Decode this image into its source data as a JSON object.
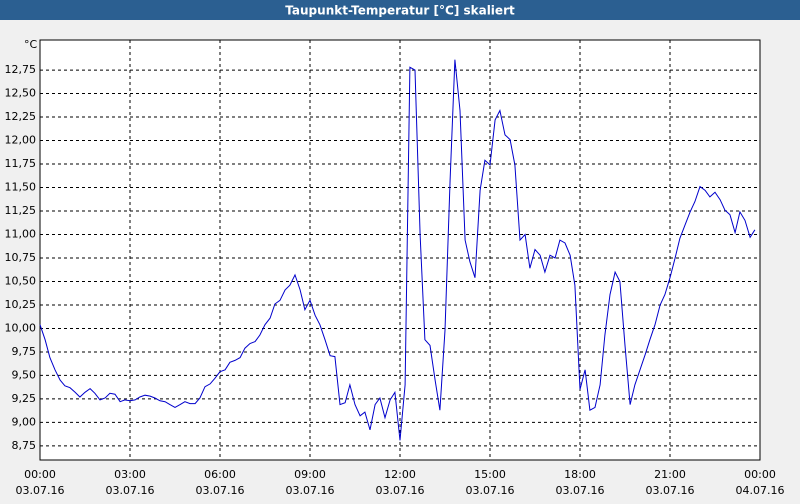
{
  "chart_data": {
    "type": "line",
    "title": "Taupunkt-Temperatur [°C] skaliert",
    "y_unit": "°C",
    "xlim": [
      0,
      24
    ],
    "ylim": [
      8.6,
      13.07
    ],
    "grid": true,
    "xticks": [
      {
        "value": 0,
        "label": "00:00",
        "date": "03.07.16"
      },
      {
        "value": 3,
        "label": "03:00",
        "date": "03.07.16"
      },
      {
        "value": 6,
        "label": "06:00",
        "date": "03.07.16"
      },
      {
        "value": 9,
        "label": "09:00",
        "date": "03.07.16"
      },
      {
        "value": 12,
        "label": "12:00",
        "date": "03.07.16"
      },
      {
        "value": 15,
        "label": "15:00",
        "date": "03.07.16"
      },
      {
        "value": 18,
        "label": "18:00",
        "date": "03.07.16"
      },
      {
        "value": 21,
        "label": "21:00",
        "date": "03.07.16"
      },
      {
        "value": 24,
        "label": "00:00",
        "date": "04.07.16"
      }
    ],
    "yticks": [
      {
        "value": 8.75,
        "label": "8,75"
      },
      {
        "value": 9,
        "label": "9,00"
      },
      {
        "value": 9.25,
        "label": "9,25"
      },
      {
        "value": 9.5,
        "label": "9,50"
      },
      {
        "value": 9.75,
        "label": "9,75"
      },
      {
        "value": 10,
        "label": "10,00"
      },
      {
        "value": 10.25,
        "label": "10,25"
      },
      {
        "value": 10.5,
        "label": "10,50"
      },
      {
        "value": 10.75,
        "label": "10,75"
      },
      {
        "value": 11,
        "label": "11,00"
      },
      {
        "value": 11.25,
        "label": "11,25"
      },
      {
        "value": 11.5,
        "label": "11,50"
      },
      {
        "value": 11.75,
        "label": "11,75"
      },
      {
        "value": 12,
        "label": "12,00"
      },
      {
        "value": 12.25,
        "label": "12,25"
      },
      {
        "value": 12.5,
        "label": "12,50"
      },
      {
        "value": 12.75,
        "label": "12,75"
      }
    ],
    "x": [
      0,
      0.17,
      0.33,
      0.5,
      0.67,
      0.83,
      1,
      1.17,
      1.33,
      1.5,
      1.67,
      1.83,
      2,
      2.17,
      2.33,
      2.5,
      2.67,
      2.83,
      3,
      3.17,
      3.33,
      3.5,
      3.67,
      3.83,
      4,
      4.17,
      4.33,
      4.5,
      4.67,
      4.83,
      5,
      5.17,
      5.33,
      5.5,
      5.67,
      5.83,
      6,
      6.17,
      6.33,
      6.5,
      6.67,
      6.83,
      7,
      7.17,
      7.33,
      7.5,
      7.67,
      7.83,
      8,
      8.17,
      8.33,
      8.5,
      8.67,
      8.83,
      9,
      9.17,
      9.33,
      9.5,
      9.67,
      9.83,
      10,
      10.17,
      10.33,
      10.5,
      10.67,
      10.83,
      11,
      11.17,
      11.33,
      11.5,
      11.67,
      11.83,
      12,
      12.17,
      12.33,
      12.5,
      12.67,
      12.83,
      13,
      13.17,
      13.33,
      13.5,
      13.67,
      13.83,
      14,
      14.17,
      14.33,
      14.5,
      14.67,
      14.83,
      15,
      15.17,
      15.33,
      15.5,
      15.67,
      15.83,
      16,
      16.17,
      16.33,
      16.5,
      16.67,
      16.83,
      17,
      17.17,
      17.33,
      17.5,
      17.67,
      17.83,
      18,
      18.17,
      18.33,
      18.5,
      18.67,
      18.83,
      19,
      19.17,
      19.33,
      19.5,
      19.67,
      19.83,
      20,
      20.17,
      20.33,
      20.5,
      20.67,
      20.83,
      21,
      21.17,
      21.33,
      21.5,
      21.67,
      21.83,
      22,
      22.17,
      22.33,
      22.5,
      22.67,
      22.83,
      23,
      23.17,
      23.33,
      23.5,
      23.67,
      23.83
    ],
    "series": [
      {
        "name": "Taupunkt-Temperatur",
        "color": "#0000cc",
        "values": [
          10.04,
          9.88,
          9.69,
          9.56,
          9.45,
          9.39,
          9.37,
          9.32,
          9.27,
          9.32,
          9.36,
          9.31,
          9.24,
          9.26,
          9.31,
          9.3,
          9.22,
          9.24,
          9.23,
          9.24,
          9.27,
          9.29,
          9.28,
          9.26,
          9.23,
          9.22,
          9.19,
          9.16,
          9.19,
          9.22,
          9.2,
          9.2,
          9.26,
          9.38,
          9.41,
          9.47,
          9.54,
          9.56,
          9.64,
          9.66,
          9.69,
          9.79,
          9.84,
          9.86,
          9.93,
          10.04,
          10.11,
          10.26,
          10.3,
          10.41,
          10.46,
          10.57,
          10.41,
          10.2,
          10.3,
          10.14,
          10.04,
          9.88,
          9.71,
          9.7,
          9.19,
          9.21,
          9.4,
          9.19,
          9.07,
          9.11,
          8.92,
          9.19,
          9.26,
          9.05,
          9.24,
          9.32,
          8.81,
          9.4,
          12.78,
          12.75,
          11.0,
          9.88,
          9.82,
          9.45,
          9.13,
          9.98,
          11.58,
          12.86,
          12.32,
          10.94,
          10.71,
          10.54,
          11.47,
          11.79,
          11.74,
          12.22,
          12.32,
          12.06,
          12.01,
          11.74,
          10.94,
          11.0,
          10.64,
          10.84,
          10.78,
          10.6,
          10.78,
          10.75,
          10.94,
          10.91,
          10.78,
          10.46,
          9.35,
          9.56,
          9.13,
          9.16,
          9.4,
          9.93,
          10.36,
          10.6,
          10.5,
          9.82,
          9.19,
          9.4,
          9.56,
          9.72,
          9.88,
          10.04,
          10.25,
          10.36,
          10.54,
          10.75,
          10.96,
          11.1,
          11.24,
          11.35,
          11.51,
          11.47,
          11.4,
          11.45,
          11.37,
          11.26,
          11.21,
          11.02,
          11.24,
          11.15,
          10.97,
          11.05
        ]
      }
    ]
  }
}
